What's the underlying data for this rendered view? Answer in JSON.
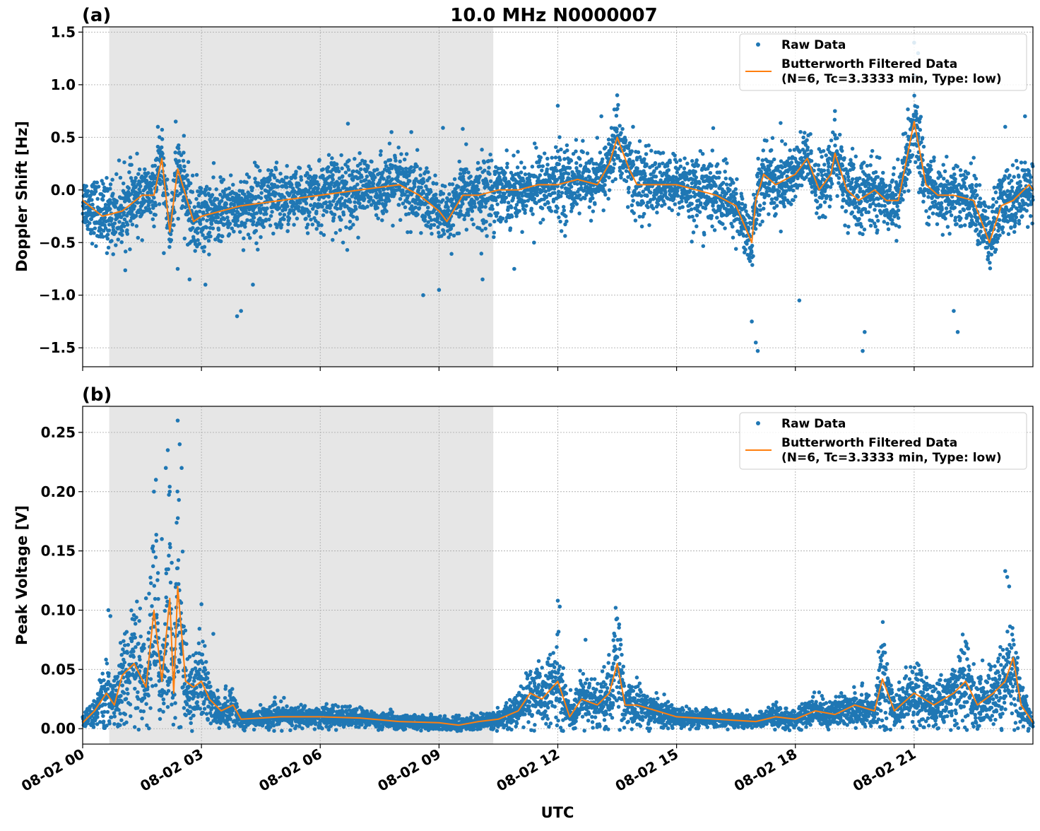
{
  "title": "10.0 MHz N0000007",
  "xlabel": "UTC",
  "colors": {
    "raw": "#1f77b4",
    "filtered": "#ff7f0e",
    "shade": "#e6e6e6",
    "grid": "#b0b0b0"
  },
  "x_ticks": [
    "08-02 00",
    "08-02 03",
    "08-02 06",
    "08-02 09",
    "08-02 12",
    "08-02 15",
    "08-02 18",
    "08-02 21"
  ],
  "chart_data": [
    {
      "type": "scatter",
      "panel_label": "(a)",
      "ylabel": "Doppler Shift [Hz]",
      "xlim_hours": [
        0,
        24
      ],
      "ylim": [
        -1.68,
        1.55
      ],
      "y_ticks": [
        1.5,
        1.0,
        0.5,
        0.0,
        -0.5,
        -1.0,
        -1.5
      ],
      "y_tick_labels": [
        "1.5",
        "1.0",
        "0.5",
        "0.0",
        "−0.5",
        "−1.0",
        "−1.5"
      ],
      "shaded_region_hours": [
        0.67,
        10.37
      ],
      "grid": true,
      "legend_position": "top-right",
      "legend": {
        "raw": "Raw Data",
        "filtered_line1": "Butterworth Filtered Data",
        "filtered_line2": "(N=6, Tc=3.3333 min, Type: low)"
      },
      "series": [
        {
          "name": "Butterworth Filtered Data",
          "x_hours": [
            0,
            0.5,
            1.0,
            1.5,
            1.8,
            2.0,
            2.2,
            2.4,
            2.8,
            3.0,
            3.5,
            4.0,
            5.0,
            6.0,
            7.0,
            8.0,
            8.5,
            9.0,
            9.2,
            9.6,
            10.0,
            10.5,
            11.0,
            11.5,
            12.0,
            12.5,
            13.0,
            13.3,
            13.5,
            13.8,
            14.0,
            15.0,
            15.5,
            16.0,
            16.5,
            16.9,
            17.0,
            17.2,
            17.5,
            18.0,
            18.3,
            18.6,
            18.9,
            19.0,
            19.3,
            19.6,
            20.0,
            20.3,
            20.6,
            21.0,
            21.3,
            21.6,
            22.0,
            22.5,
            22.9,
            23.2,
            23.5,
            23.9,
            24.0
          ],
          "y": [
            -0.1,
            -0.25,
            -0.2,
            -0.05,
            -0.05,
            0.3,
            -0.4,
            0.2,
            -0.3,
            -0.25,
            -0.2,
            -0.15,
            -0.1,
            -0.05,
            0.0,
            0.05,
            -0.05,
            -0.2,
            -0.3,
            -0.05,
            -0.05,
            0.0,
            0.0,
            0.05,
            0.05,
            0.1,
            0.05,
            0.25,
            0.5,
            0.2,
            0.05,
            0.05,
            0.0,
            -0.05,
            -0.15,
            -0.5,
            -0.1,
            0.15,
            0.05,
            0.15,
            0.3,
            0.0,
            0.15,
            0.35,
            0.0,
            -0.1,
            0.0,
            -0.1,
            -0.1,
            0.65,
            0.05,
            -0.05,
            -0.05,
            -0.1,
            -0.5,
            -0.15,
            -0.1,
            0.05,
            0.0
          ]
        },
        {
          "name": "Raw Data",
          "x_hours": [
            1.9,
            2.05,
            2.35,
            2.4,
            2.7,
            3.1,
            3.9,
            4.0,
            4.3,
            6.7,
            7.8,
            8.3,
            8.6,
            9.0,
            9.1,
            9.6,
            10.1,
            10.9,
            11.4,
            12.0,
            13.1,
            13.5,
            13.9,
            16.9,
            17.0,
            17.05,
            18.1,
            19.0,
            19.7,
            19.75,
            21.0,
            21.1,
            22.0,
            22.1,
            23.3,
            23.8
          ],
          "y": [
            0.6,
            -0.6,
            0.65,
            -0.75,
            -0.85,
            -0.9,
            -1.2,
            -1.15,
            -0.9,
            0.63,
            0.55,
            0.55,
            -1.0,
            -0.95,
            0.59,
            0.58,
            -0.85,
            -0.75,
            -0.5,
            0.8,
            0.7,
            0.9,
            0.6,
            -1.25,
            -1.45,
            -1.53,
            -1.05,
            0.75,
            -1.53,
            -1.35,
            1.4,
            1.3,
            -1.15,
            -1.35,
            0.6,
            0.7
          ]
        }
      ]
    },
    {
      "type": "scatter",
      "panel_label": "(b)",
      "ylabel": "Peak Voltage [V]",
      "xlim_hours": [
        0,
        24
      ],
      "ylim": [
        -0.013,
        0.272
      ],
      "y_ticks": [
        0.25,
        0.2,
        0.15,
        0.1,
        0.05,
        0.0
      ],
      "y_tick_labels": [
        "0.25",
        "0.20",
        "0.15",
        "0.10",
        "0.05",
        "0.00"
      ],
      "shaded_region_hours": [
        0.67,
        10.37
      ],
      "grid": true,
      "legend_position": "top-right",
      "legend": {
        "raw": "Raw Data",
        "filtered_line1": "Butterworth Filtered Data",
        "filtered_line2": "(N=6, Tc=3.3333 min, Type: low)"
      },
      "series": [
        {
          "name": "Butterworth Filtered Data",
          "x_hours": [
            0,
            0.3,
            0.6,
            0.8,
            1.0,
            1.3,
            1.6,
            1.8,
            2.0,
            2.2,
            2.3,
            2.4,
            2.6,
            2.8,
            3.0,
            3.2,
            3.5,
            3.8,
            4.0,
            5.0,
            6.0,
            7.0,
            8.0,
            9.0,
            9.5,
            10.0,
            10.5,
            11.0,
            11.3,
            11.6,
            12.0,
            12.3,
            12.6,
            13.0,
            13.3,
            13.5,
            13.7,
            14.0,
            14.5,
            15.0,
            16.0,
            17.0,
            17.5,
            18.0,
            18.5,
            19.0,
            19.5,
            20.0,
            20.2,
            20.5,
            21.0,
            21.5,
            22.0,
            22.3,
            22.6,
            23.0,
            23.3,
            23.5,
            23.7,
            24.0
          ],
          "y": [
            0.005,
            0.015,
            0.03,
            0.02,
            0.045,
            0.055,
            0.035,
            0.1,
            0.04,
            0.11,
            0.03,
            0.12,
            0.04,
            0.035,
            0.04,
            0.025,
            0.015,
            0.02,
            0.008,
            0.01,
            0.01,
            0.009,
            0.006,
            0.005,
            0.003,
            0.006,
            0.008,
            0.015,
            0.03,
            0.025,
            0.04,
            0.01,
            0.025,
            0.02,
            0.03,
            0.055,
            0.02,
            0.02,
            0.015,
            0.01,
            0.008,
            0.006,
            0.01,
            0.008,
            0.015,
            0.012,
            0.02,
            0.015,
            0.042,
            0.015,
            0.03,
            0.02,
            0.03,
            0.04,
            0.02,
            0.03,
            0.04,
            0.06,
            0.02,
            0.005
          ]
        },
        {
          "name": "Raw Data",
          "x_hours": [
            0.65,
            0.7,
            1.6,
            1.8,
            1.85,
            2.0,
            2.1,
            2.15,
            2.2,
            2.25,
            2.4,
            2.45,
            2.5,
            3.0,
            3.3,
            12.0,
            12.05,
            12.7,
            13.5,
            13.55,
            20.1,
            20.15,
            23.3,
            23.35,
            23.4
          ],
          "y": [
            0.1,
            0.095,
            0.11,
            0.2,
            0.21,
            0.16,
            0.22,
            0.235,
            0.2,
            0.14,
            0.26,
            0.24,
            0.22,
            0.105,
            0.08,
            0.108,
            0.103,
            0.075,
            0.093,
            0.088,
            0.065,
            0.06,
            0.133,
            0.128,
            0.12
          ]
        }
      ]
    }
  ]
}
